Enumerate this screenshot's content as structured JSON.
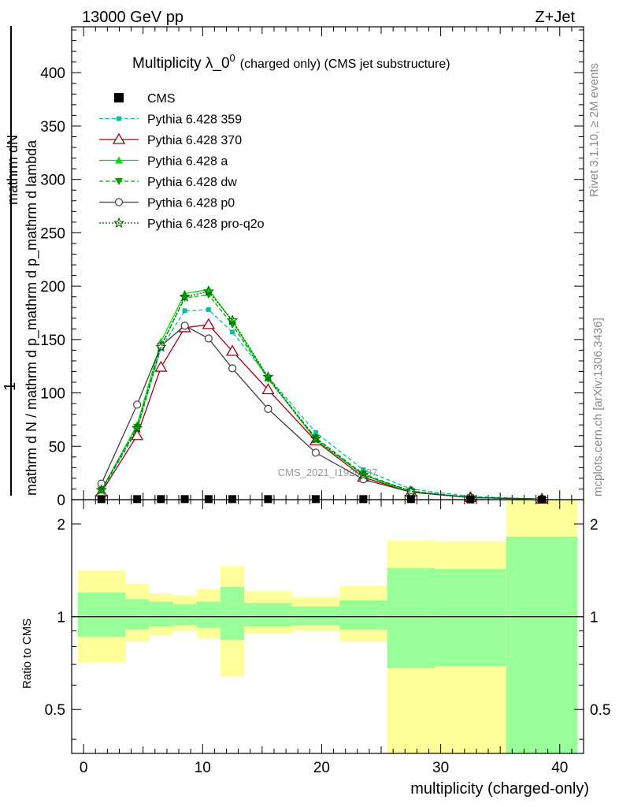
{
  "header": {
    "left": "13000 GeV pp",
    "right": "Z+Jet"
  },
  "side_labels": {
    "rivet": "Rivet 3.1.10, ≥ 2M events",
    "mcplots": "mcplots.cern.ch [arXiv:1306.3436]"
  },
  "watermark": "CMS_2021_I1920187",
  "chart_data": [
    {
      "type": "line",
      "title": "Multiplicity λ_0",
      "title_sup": "0",
      "title_suffix": "(charged only) (CMS jet substructure)",
      "ylabel_numer": "mathrm dN",
      "ylabel_one": "1",
      "ylabel_denom": "mathrm d N / mathrm d p_mathrm d p_mathrm d lambda",
      "xlim": [
        -1,
        42
      ],
      "ylim": [
        0,
        443
      ],
      "yticks": [
        0,
        50,
        100,
        150,
        200,
        250,
        300,
        350,
        400
      ],
      "x": [
        1.5,
        4.5,
        6.5,
        8.5,
        10.5,
        12.5,
        15.5,
        19.5,
        23.5,
        27.5,
        32.5,
        38.5
      ],
      "series": [
        {
          "name": "CMS",
          "color": "#000000",
          "marker": "square",
          "style": "none",
          "values": [
            0.5,
            0.5,
            0.5,
            0.5,
            0.5,
            0.5,
            0.5,
            0.5,
            0.5,
            0.5,
            0.2,
            0.1
          ]
        },
        {
          "name": "Pythia 6.428 359",
          "color": "#00c0a0",
          "marker": "square-small",
          "style": "dashed",
          "values": [
            8,
            65,
            142,
            177,
            178,
            157,
            115,
            63,
            28,
            10,
            3,
            0.5
          ]
        },
        {
          "name": "Pythia 6.428 370",
          "color": "#a00018",
          "marker": "triangle-open",
          "style": "solid",
          "values": [
            7,
            60,
            124,
            161,
            164,
            139,
            103,
            55,
            21,
            7,
            2,
            0.5
          ]
        },
        {
          "name": "Pythia 6.428 a",
          "color": "#00e000",
          "marker": "triangle",
          "style": "solid",
          "values": [
            9,
            70,
            148,
            193,
            197,
            167,
            114,
            56,
            23,
            7,
            2,
            0.5
          ]
        },
        {
          "name": "Pythia 6.428 dw",
          "color": "#00a000",
          "marker": "triangle-down",
          "style": "dashed",
          "values": [
            9,
            68,
            144,
            189,
            192,
            164,
            113,
            58,
            24,
            8,
            2,
            0.5
          ]
        },
        {
          "name": "Pythia 6.428 p0",
          "color": "#404040",
          "marker": "circle-open",
          "style": "solid",
          "values": [
            15,
            89,
            144,
            163,
            151,
            123,
            85,
            44,
            19,
            7,
            2,
            0.5
          ]
        },
        {
          "name": "Pythia 6.428 pro-q2o",
          "color": "#006000",
          "marker": "star",
          "style": "dotted",
          "values": [
            9,
            67,
            143,
            190,
            195,
            168,
            115,
            57,
            23,
            8,
            2,
            0.5
          ]
        }
      ]
    },
    {
      "type": "area",
      "ylabel": "Ratio to CMS",
      "xlabel": "multiplicity (charged-only)",
      "ylim": [
        0.36,
        2.4
      ],
      "yticks": [
        0.5,
        1,
        2
      ],
      "xticks": [
        0,
        10,
        20,
        30,
        40
      ],
      "reference_line": 1,
      "bins": [
        {
          "lo": -0.5,
          "hi": 3.5,
          "green": [
            0.86,
            1.2
          ],
          "yellow": [
            0.71,
            1.41
          ]
        },
        {
          "lo": 3.5,
          "hi": 5.5,
          "green": [
            0.91,
            1.14
          ],
          "yellow": [
            0.83,
            1.28
          ]
        },
        {
          "lo": 5.5,
          "hi": 7.5,
          "green": [
            0.93,
            1.12
          ],
          "yellow": [
            0.87,
            1.19
          ]
        },
        {
          "lo": 7.5,
          "hi": 9.5,
          "green": [
            0.94,
            1.1
          ],
          "yellow": [
            0.9,
            1.17
          ]
        },
        {
          "lo": 9.5,
          "hi": 11.5,
          "green": [
            0.92,
            1.12
          ],
          "yellow": [
            0.85,
            1.23
          ]
        },
        {
          "lo": 11.5,
          "hi": 13.5,
          "green": [
            0.84,
            1.25
          ],
          "yellow": [
            0.64,
            1.46
          ]
        },
        {
          "lo": 13.5,
          "hi": 17.5,
          "green": [
            0.93,
            1.11
          ],
          "yellow": [
            0.88,
            1.21
          ]
        },
        {
          "lo": 17.5,
          "hi": 21.5,
          "green": [
            0.94,
            1.08
          ],
          "yellow": [
            0.9,
            1.16
          ]
        },
        {
          "lo": 21.5,
          "hi": 25.5,
          "green": [
            0.91,
            1.13
          ],
          "yellow": [
            0.83,
            1.26
          ]
        },
        {
          "lo": 25.5,
          "hi": 29.5,
          "green": [
            0.68,
            1.44
          ],
          "yellow": [
            0.35,
            1.77
          ]
        },
        {
          "lo": 29.5,
          "hi": 35.5,
          "green": [
            0.69,
            1.43
          ],
          "yellow": [
            0.35,
            1.76
          ]
        },
        {
          "lo": 35.5,
          "hi": 41.5,
          "green": [
            0.35,
            1.82
          ],
          "yellow": [
            0.35,
            2.45
          ]
        }
      ]
    }
  ]
}
